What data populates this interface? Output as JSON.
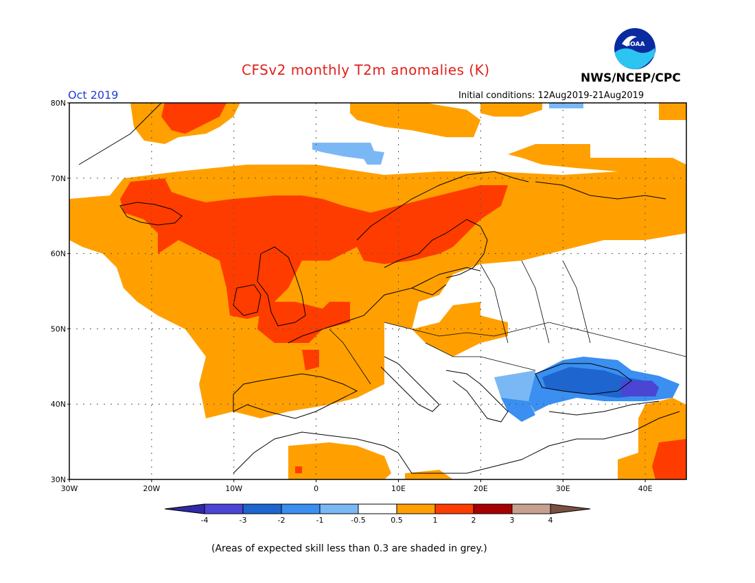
{
  "header": {
    "title": "CFSv2 monthly T2m anomalies (K)",
    "agency": "NWS/NCEP/CPC",
    "month": "Oct 2019",
    "initial_conditions": "Initial conditions: 12Aug2019-21Aug2019",
    "logo_text": "NOAA"
  },
  "map": {
    "lon_range": [
      -30,
      45
    ],
    "lat_range": [
      30,
      80
    ],
    "grid": true,
    "lat_labels": [
      "30N",
      "40N",
      "50N",
      "60N",
      "70N",
      "80N"
    ],
    "lon_labels": [
      "30W",
      "20W",
      "10W",
      "0",
      "10E",
      "20E",
      "30E",
      "40E"
    ]
  },
  "legend": {
    "ticks": [
      "-4",
      "-3",
      "-2",
      "-1",
      "-0.5",
      "0.5",
      "1",
      "2",
      "3",
      "4"
    ],
    "colors": [
      "#2f2aa8",
      "#4a45d4",
      "#1f65cf",
      "#3a8ff0",
      "#7ab8f5",
      "#ffffff",
      "#ffa000",
      "#ff3c00",
      "#a60000",
      "#c8a090",
      "#7a5040"
    ]
  },
  "footer": {
    "note": "(Areas of expected skill less than 0.3 are shaded in grey.)"
  }
}
